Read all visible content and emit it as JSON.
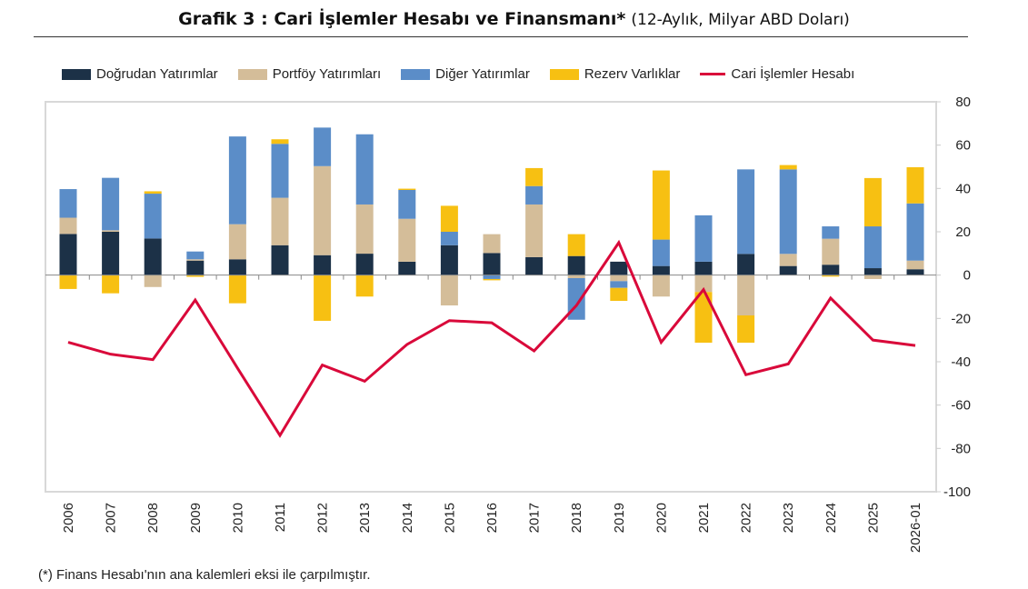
{
  "title": "Grafik 3 : Cari İşlemler Hesabı ve Finansmanı*",
  "subtitle": "(12-Aylık, Milyar ABD Doları)",
  "footnote": "(*) Finans Hesabı'nın ana kalemleri eksi ile çarpılmıştır.",
  "chart_data": {
    "type": "bar",
    "stacked": true,
    "categories": [
      "2006",
      "2007",
      "2008",
      "2009",
      "2010",
      "2011",
      "2012",
      "2013",
      "2014",
      "2015",
      "2016",
      "2017",
      "2018",
      "2019",
      "2020",
      "2021",
      "2022",
      "2023",
      "2024",
      "2025",
      "2026-01"
    ],
    "ylim": [
      -100,
      80
    ],
    "yticks": [
      80,
      60,
      40,
      20,
      0,
      -20,
      -40,
      -60,
      -80,
      -100
    ],
    "y_axis_side": "right",
    "legend_placement": "top",
    "series": [
      {
        "name": "Doğrudan Yatırımlar",
        "type": "bar",
        "color": "#1c3147",
        "values": [
          19,
          20,
          16.9,
          6.7,
          7.3,
          13.8,
          9.2,
          9.9,
          6.2,
          13.8,
          10.2,
          8.3,
          8.8,
          6.2,
          4.2,
          6.2,
          9.8,
          4.2,
          4.8,
          3.2,
          2.7
        ]
      },
      {
        "name": "Portföy Yatırımları",
        "type": "bar",
        "color": "#d4bd99",
        "values": [
          7.5,
          0.7,
          -5.5,
          0.6,
          16.2,
          21.9,
          41.1,
          22.7,
          19.8,
          -14,
          8.7,
          24.3,
          -1.4,
          -2.8,
          -9.9,
          -7.8,
          -18.6,
          5.6,
          12,
          -1.8,
          4
        ]
      },
      {
        "name": "Diğer Yatırımlar",
        "type": "bar",
        "color": "#5b8dc8",
        "values": [
          13.2,
          24.2,
          20.7,
          3.6,
          40.5,
          24.9,
          17.8,
          32.4,
          13.3,
          6.2,
          -1.8,
          8.5,
          -19.2,
          -3.1,
          12.2,
          21.4,
          39,
          39,
          5.7,
          19.3,
          26.4
        ]
      },
      {
        "name": "Rezerv Varlıklar",
        "type": "bar",
        "color": "#f7c012",
        "values": [
          -6.4,
          -8.4,
          1.1,
          -0.8,
          -13,
          2.1,
          -21.1,
          -9.9,
          0.6,
          12,
          -0.6,
          8.3,
          10.1,
          -6,
          31.9,
          -23.4,
          -12.6,
          2,
          -0.7,
          22.3,
          16.7
        ]
      },
      {
        "name": "Cari İşlemler Hesabı",
        "type": "line",
        "color": "#d9093a",
        "values": [
          -31,
          -36.5,
          -39,
          -11.5,
          -43,
          -74,
          -41.5,
          -49,
          -32,
          -21,
          -22,
          -35,
          -14,
          15,
          -31,
          -6.7,
          -46,
          -41,
          -10.6,
          -30,
          -32.5
        ]
      }
    ]
  }
}
